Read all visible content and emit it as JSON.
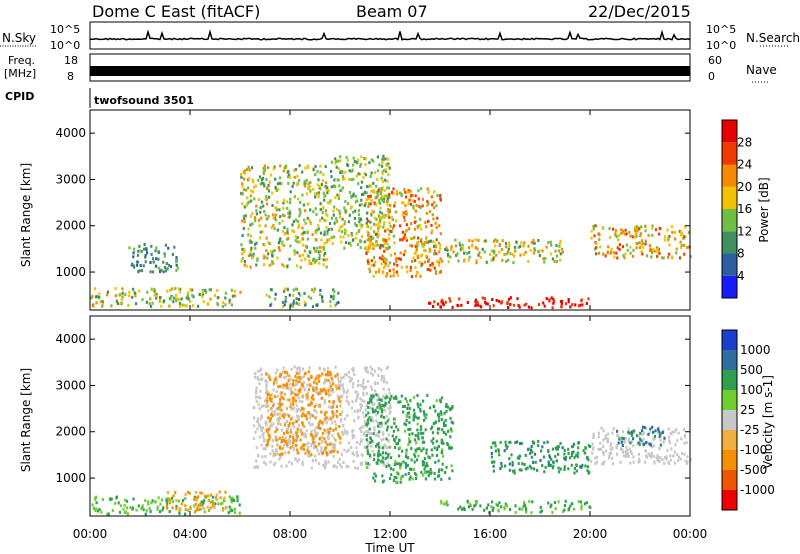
{
  "header": {
    "radar": "Dome C East (fitACF)",
    "beam": "Beam 07",
    "date": "22/Dec/2015"
  },
  "summary": {
    "nsky_label": "N.Sky",
    "nsky_ticks": [
      "10^5",
      "10^0"
    ],
    "nsearch_label": "N.Search",
    "nsearch_ticks": [
      "10^5",
      "10^0"
    ],
    "freq_label": [
      "Freq.",
      "[MHz]"
    ],
    "freq_ticks": [
      "18",
      "8"
    ],
    "nave_label": "Nave",
    "nave_ticks": [
      "60",
      "0"
    ],
    "cpid_label": "CPID",
    "cpid_value": "twofsound 3501"
  },
  "colors": {
    "power": [
      "#1a1aff",
      "#2c5fa0",
      "#3f8f5f",
      "#6fbf40",
      "#f2c200",
      "#f58a00",
      "#ee3a00",
      "#e80000"
    ],
    "velocity": [
      "#ee0000",
      "#ee5500",
      "#f59000",
      "#f2b040",
      "#c8c8c8",
      "#6fcf30",
      "#2f9f4f",
      "#2f6f9f",
      "#1a3fcf"
    ],
    "ground_scatter": "#c8c8c8"
  },
  "chart_data": [
    {
      "type": "heatmap",
      "name": "power",
      "xlabel": "",
      "ylabel": "Slant Range [km]",
      "xlim": [
        "00:00",
        "00:00"
      ],
      "ylim": [
        180,
        4500
      ],
      "yticks": [
        "1000",
        "2000",
        "3000",
        "4000"
      ],
      "colorbar": {
        "label": "Power [dB]",
        "range": [
          0,
          32
        ],
        "ticks": [
          "4",
          "8",
          "12",
          "16",
          "20",
          "24",
          "28"
        ]
      },
      "features": [
        {
          "t": [
            0.0,
            6.0
          ],
          "r": [
            250,
            650
          ],
          "level": [
            8,
            22
          ]
        },
        {
          "t": [
            7.0,
            10.0
          ],
          "r": [
            250,
            650
          ],
          "level": [
            6,
            18
          ]
        },
        {
          "t": [
            6.0,
            9.5
          ],
          "r": [
            1100,
            3300
          ],
          "level": [
            8,
            22
          ]
        },
        {
          "t": [
            9.5,
            12.0
          ],
          "r": [
            1500,
            3500
          ],
          "level": [
            8,
            20
          ]
        },
        {
          "t": [
            11.0,
            14.0
          ],
          "r": [
            900,
            2800
          ],
          "level": [
            14,
            28
          ]
        },
        {
          "t": [
            13.5,
            20.0
          ],
          "r": [
            220,
            450
          ],
          "level": [
            26,
            32
          ]
        },
        {
          "t": [
            13.0,
            19.0
          ],
          "r": [
            1200,
            1700
          ],
          "level": [
            10,
            24
          ]
        },
        {
          "t": [
            20.0,
            24.0
          ],
          "r": [
            1300,
            2000
          ],
          "level": [
            14,
            26
          ]
        },
        {
          "t": [
            1.5,
            3.5
          ],
          "r": [
            1000,
            1600
          ],
          "level": [
            6,
            14
          ]
        }
      ]
    },
    {
      "type": "heatmap",
      "name": "velocity",
      "xlabel": "Time UT",
      "ylabel": "Slant Range [km]",
      "xlim": [
        "00:00",
        "00:00"
      ],
      "ylim": [
        180,
        4500
      ],
      "yticks": [
        "1000",
        "2000",
        "3000",
        "4000"
      ],
      "xticks": [
        "00:00",
        "04:00",
        "08:00",
        "12:00",
        "16:00",
        "20:00",
        "00:00"
      ],
      "colorbar": {
        "label": "Velocity [m s-1]",
        "ticks": [
          "1000",
          "500",
          "100",
          "25",
          "-25",
          "-100",
          "-500",
          "-1000"
        ]
      },
      "features": [
        {
          "t": [
            0.0,
            6.0
          ],
          "r": [
            220,
            600
          ],
          "v": [
            25,
            150
          ]
        },
        {
          "t": [
            3.0,
            5.5
          ],
          "r": [
            300,
            700
          ],
          "v": [
            -200,
            -60
          ]
        },
        {
          "t": [
            6.5,
            12.0
          ],
          "r": [
            1200,
            3400
          ],
          "v": [
            -25,
            25
          ]
        },
        {
          "t": [
            7.0,
            10.0
          ],
          "r": [
            1500,
            3300
          ],
          "v": [
            -300,
            -60
          ]
        },
        {
          "t": [
            11.0,
            14.5
          ],
          "r": [
            900,
            2800
          ],
          "v": [
            60,
            500
          ]
        },
        {
          "t": [
            14.0,
            20.0
          ],
          "r": [
            250,
            500
          ],
          "v": [
            40,
            200
          ]
        },
        {
          "t": [
            16.0,
            20.0
          ],
          "r": [
            1100,
            1800
          ],
          "v": [
            100,
            600
          ]
        },
        {
          "t": [
            20.0,
            24.0
          ],
          "r": [
            1300,
            2100
          ],
          "v": [
            -25,
            25
          ]
        },
        {
          "t": [
            21.0,
            23.0
          ],
          "r": [
            1700,
            2100
          ],
          "v": [
            300,
            1000
          ]
        }
      ]
    }
  ]
}
